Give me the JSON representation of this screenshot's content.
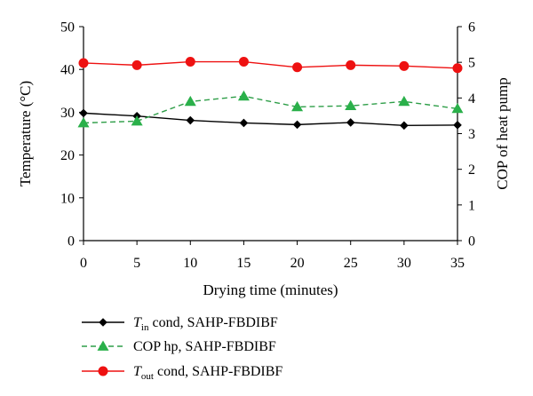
{
  "chart_data": {
    "type": "line",
    "x": [
      0,
      5,
      10,
      15,
      20,
      25,
      30,
      35
    ],
    "xlabel": "Drying time (minutes)",
    "ylabel": "Temperature (°C)",
    "y2label": "COP of heat pump",
    "xlim": [
      0,
      35
    ],
    "ylim": [
      0,
      50
    ],
    "y2lim": [
      0,
      6
    ],
    "xticks": [
      "0",
      "5",
      "10",
      "15",
      "20",
      "25",
      "30",
      "35"
    ],
    "yticks": [
      "0",
      "10",
      "20",
      "30",
      "40",
      "50"
    ],
    "y2ticks": [
      "0",
      "1",
      "2",
      "3",
      "4",
      "5",
      "6"
    ],
    "grid": false,
    "legend_position": "bottom",
    "series": [
      {
        "name": "Tin cond, SAHP-FBDIBF",
        "legend_main": "T",
        "legend_sub": "in",
        "legend_rest": " cond, SAHP-FBDIBF",
        "axis": "left",
        "color": "#000000",
        "marker": "diamond",
        "dash": "solid",
        "values": [
          29.8,
          29.1,
          28.1,
          27.5,
          27.1,
          27.6,
          26.9,
          27.0
        ]
      },
      {
        "name": "COP hp, SAHP-FBDIBF",
        "legend_main": "COP hp, SAHP-FBDIBF",
        "legend_sub": "",
        "legend_rest": "",
        "axis": "right",
        "color": "#2e9e48",
        "marker_color": "#2ab04a",
        "marker": "triangle",
        "dash": "dashed",
        "values": [
          3.3,
          3.35,
          3.9,
          4.05,
          3.75,
          3.78,
          3.9,
          3.7
        ]
      },
      {
        "name": "Tout cond, SAHP-FBDIBF",
        "legend_main": "T",
        "legend_sub": "out",
        "legend_rest": " cond, SAHP-FBDIBF",
        "axis": "left",
        "color": "#ee1111",
        "marker": "circle",
        "dash": "solid",
        "values": [
          41.5,
          41.0,
          41.8,
          41.8,
          40.5,
          41.0,
          40.8,
          40.3
        ]
      }
    ]
  }
}
